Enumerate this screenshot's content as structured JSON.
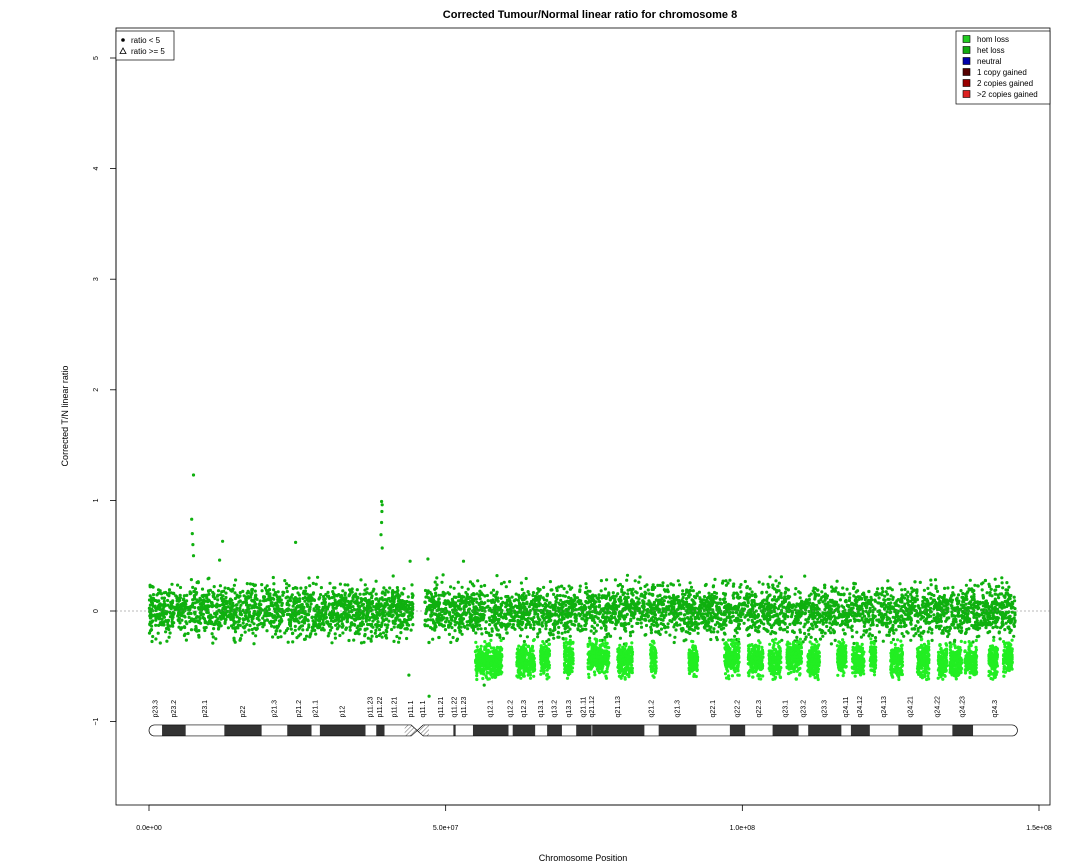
{
  "chart_data": {
    "type": "scatter",
    "title": "Corrected Tumour/Normal linear ratio for chromosome  8",
    "xlabel": "Chromosome Position",
    "ylabel": "Corrected T/N linear ratio",
    "xlim": [
      0,
      150000000
    ],
    "ylim": [
      -1.75,
      5.25
    ],
    "x_ticks": [
      0,
      50000000,
      100000000,
      150000000
    ],
    "x_tick_labels": [
      "0.0e+00",
      "5.0e+07",
      "1.0e+08",
      "1.5e+08"
    ],
    "y_ticks": [
      -1,
      0,
      1,
      2,
      3,
      4,
      5
    ],
    "y_tick_labels": [
      "−1",
      "0",
      "1",
      "2",
      "3",
      "4",
      "5"
    ],
    "reference_line": 0,
    "shape_legend": {
      "placement": "top-left",
      "entries": [
        {
          "label": "ratio < 5",
          "symbol": "dot"
        },
        {
          "label": "ratio >= 5",
          "symbol": "triangle"
        }
      ]
    },
    "color_legend": {
      "placement": "top-right",
      "entries": [
        {
          "label": "hom loss",
          "color": "#22cc22"
        },
        {
          "label": "het loss",
          "color": "#11aa11"
        },
        {
          "label": "neutral",
          "color": "#0000aa"
        },
        {
          "label": "1 copy gained",
          "color": "#550000"
        },
        {
          "label": "2 copies gained",
          "color": "#990000"
        },
        {
          "label": ">2 copies gained",
          "color": "#dd2222"
        }
      ]
    },
    "point_colors": {
      "main": "#0fb00f",
      "loss": "#22ee22"
    },
    "main_segments": [
      {
        "start": 0,
        "end": 44500000,
        "mean": 0.0,
        "sd": 0.11
      },
      {
        "start": 46500000,
        "end": 146000000,
        "mean": 0.0,
        "sd": 0.11
      }
    ],
    "loss_regions": [
      {
        "start": 55000000,
        "end": 59500000,
        "mean": -0.45
      },
      {
        "start": 62000000,
        "end": 65000000,
        "mean": -0.45
      },
      {
        "start": 66000000,
        "end": 67500000,
        "mean": -0.42
      },
      {
        "start": 70000000,
        "end": 71500000,
        "mean": -0.42
      },
      {
        "start": 74000000,
        "end": 77500000,
        "mean": -0.42
      },
      {
        "start": 79000000,
        "end": 81500000,
        "mean": -0.45
      },
      {
        "start": 84500000,
        "end": 85500000,
        "mean": -0.42
      },
      {
        "start": 91000000,
        "end": 92500000,
        "mean": -0.45
      },
      {
        "start": 97000000,
        "end": 99500000,
        "mean": -0.42
      },
      {
        "start": 101000000,
        "end": 103500000,
        "mean": -0.45
      },
      {
        "start": 104500000,
        "end": 106500000,
        "mean": -0.45
      },
      {
        "start": 107500000,
        "end": 110000000,
        "mean": -0.42
      },
      {
        "start": 111000000,
        "end": 113000000,
        "mean": -0.45
      },
      {
        "start": 116000000,
        "end": 117500000,
        "mean": -0.42
      },
      {
        "start": 118500000,
        "end": 120500000,
        "mean": -0.45
      },
      {
        "start": 121500000,
        "end": 122500000,
        "mean": -0.42
      },
      {
        "start": 125000000,
        "end": 127000000,
        "mean": -0.45
      },
      {
        "start": 129500000,
        "end": 131500000,
        "mean": -0.45
      },
      {
        "start": 133000000,
        "end": 134500000,
        "mean": -0.45
      },
      {
        "start": 135000000,
        "end": 137000000,
        "mean": -0.45
      },
      {
        "start": 137500000,
        "end": 139500000,
        "mean": -0.45
      },
      {
        "start": 141500000,
        "end": 143000000,
        "mean": -0.45
      },
      {
        "start": 144000000,
        "end": 145500000,
        "mean": -0.42
      }
    ],
    "outliers": [
      {
        "x": 7500000,
        "y": 1.23
      },
      {
        "x": 7200000,
        "y": 0.83
      },
      {
        "x": 7300000,
        "y": 0.7
      },
      {
        "x": 7400000,
        "y": 0.6
      },
      {
        "x": 7500000,
        "y": 0.5
      },
      {
        "x": 12400000,
        "y": 0.63
      },
      {
        "x": 11900000,
        "y": 0.46
      },
      {
        "x": 24700000,
        "y": 0.62
      },
      {
        "x": 39200000,
        "y": 0.99
      },
      {
        "x": 39300000,
        "y": 0.96
      },
      {
        "x": 39250000,
        "y": 0.9
      },
      {
        "x": 39200000,
        "y": 0.8
      },
      {
        "x": 39100000,
        "y": 0.69
      },
      {
        "x": 39300000,
        "y": 0.57
      },
      {
        "x": 44000000,
        "y": 0.45
      },
      {
        "x": 47000000,
        "y": 0.47
      },
      {
        "x": 53000000,
        "y": 0.45
      },
      {
        "x": 43800000,
        "y": -0.58
      },
      {
        "x": 47200000,
        "y": -0.77
      },
      {
        "x": 56500000,
        "y": -0.67
      }
    ],
    "ideogram": {
      "y": -1.08,
      "centromere": 45200000,
      "bands": [
        {
          "name": "p23.3",
          "start": 0,
          "end": 2200000,
          "stain": "gneg"
        },
        {
          "name": "p23.2",
          "start": 2200000,
          "end": 6200000,
          "stain": "gpos"
        },
        {
          "name": "p23.1",
          "start": 6200000,
          "end": 12700000,
          "stain": "gneg"
        },
        {
          "name": "p22",
          "start": 12700000,
          "end": 19000000,
          "stain": "gpos"
        },
        {
          "name": "p21.3",
          "start": 19000000,
          "end": 23300000,
          "stain": "gneg"
        },
        {
          "name": "p21.2",
          "start": 23300000,
          "end": 27400000,
          "stain": "gpos"
        },
        {
          "name": "p21.1",
          "start": 27400000,
          "end": 28800000,
          "stain": "gneg"
        },
        {
          "name": "p12",
          "start": 28800000,
          "end": 36500000,
          "stain": "gpos"
        },
        {
          "name": "p11.23",
          "start": 36500000,
          "end": 38300000,
          "stain": "gneg"
        },
        {
          "name": "p11.22",
          "start": 38300000,
          "end": 39700000,
          "stain": "gpos"
        },
        {
          "name": "p11.21",
          "start": 39700000,
          "end": 43100000,
          "stain": "gneg"
        },
        {
          "name": "p11.1",
          "start": 43100000,
          "end": 45200000,
          "stain": "acen"
        },
        {
          "name": "q11.1",
          "start": 45200000,
          "end": 47200000,
          "stain": "acen"
        },
        {
          "name": "q11.21",
          "start": 47200000,
          "end": 51300000,
          "stain": "gneg"
        },
        {
          "name": "q11.22",
          "start": 51300000,
          "end": 51700000,
          "stain": "gpos"
        },
        {
          "name": "q11.23",
          "start": 51700000,
          "end": 54600000,
          "stain": "gneg"
        },
        {
          "name": "q12.1",
          "start": 54600000,
          "end": 60600000,
          "stain": "gpos"
        },
        {
          "name": "q12.2",
          "start": 60600000,
          "end": 61300000,
          "stain": "gneg"
        },
        {
          "name": "q12.3",
          "start": 61300000,
          "end": 65100000,
          "stain": "gpos"
        },
        {
          "name": "q13.1",
          "start": 65100000,
          "end": 67100000,
          "stain": "gneg"
        },
        {
          "name": "q13.2",
          "start": 67100000,
          "end": 69600000,
          "stain": "gpos"
        },
        {
          "name": "q13.3",
          "start": 69600000,
          "end": 72000000,
          "stain": "gneg"
        },
        {
          "name": "q21.11",
          "start": 72000000,
          "end": 74600000,
          "stain": "gpos"
        },
        {
          "name": "q21.12",
          "start": 74600000,
          "end": 74700000,
          "stain": "gneg"
        },
        {
          "name": "q21.13",
          "start": 74700000,
          "end": 83500000,
          "stain": "gpos"
        },
        {
          "name": "q21.2",
          "start": 83500000,
          "end": 85900000,
          "stain": "gneg"
        },
        {
          "name": "q21.3",
          "start": 85900000,
          "end": 92300000,
          "stain": "gpos"
        },
        {
          "name": "q22.1",
          "start": 92300000,
          "end": 97900000,
          "stain": "gneg"
        },
        {
          "name": "q22.2",
          "start": 97900000,
          "end": 100500000,
          "stain": "gpos"
        },
        {
          "name": "q22.3",
          "start": 100500000,
          "end": 105100000,
          "stain": "gneg"
        },
        {
          "name": "q23.1",
          "start": 105100000,
          "end": 109500000,
          "stain": "gpos"
        },
        {
          "name": "q23.2",
          "start": 109500000,
          "end": 111100000,
          "stain": "gneg"
        },
        {
          "name": "q23.3",
          "start": 111100000,
          "end": 116700000,
          "stain": "gpos"
        },
        {
          "name": "q24.11",
          "start": 116700000,
          "end": 118300000,
          "stain": "gneg"
        },
        {
          "name": "q24.12",
          "start": 118300000,
          "end": 121500000,
          "stain": "gpos"
        },
        {
          "name": "q24.13",
          "start": 121500000,
          "end": 126300000,
          "stain": "gneg"
        },
        {
          "name": "q24.21",
          "start": 126300000,
          "end": 130400000,
          "stain": "gpos"
        },
        {
          "name": "q24.22",
          "start": 130400000,
          "end": 135400000,
          "stain": "gneg"
        },
        {
          "name": "q24.23",
          "start": 135400000,
          "end": 138900000,
          "stain": "gpos"
        },
        {
          "name": "q24.3",
          "start": 138900000,
          "end": 146364022,
          "stain": "gneg"
        }
      ]
    }
  }
}
